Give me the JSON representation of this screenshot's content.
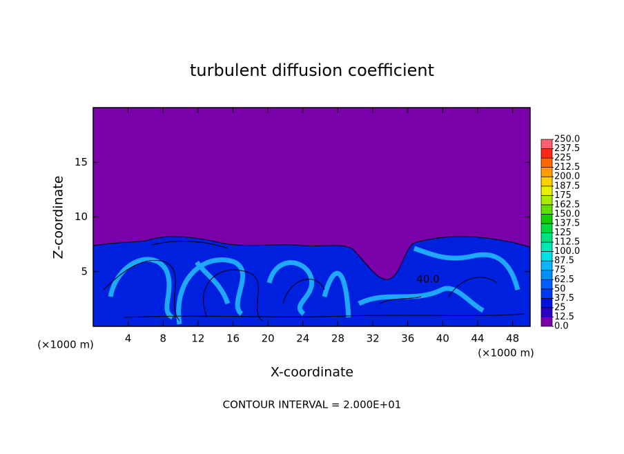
{
  "chart_data": {
    "type": "contour",
    "title": "turbulent diffusion coefficient",
    "x_label": "X-coordinate",
    "y_label": "Z-coordinate",
    "x_unit_label": "(×1000 m)",
    "x_unit_label_right": "(×1000 m)",
    "footer": "CONTOUR INTERVAL = 2.000E+01",
    "contour_labels": [
      "40.0"
    ],
    "xlim": [
      0,
      50
    ],
    "xticks": [
      4,
      8,
      12,
      16,
      20,
      24,
      28,
      32,
      36,
      40,
      44,
      48
    ],
    "ylim": [
      0,
      20
    ],
    "yticks": [
      5,
      10,
      15
    ],
    "colorbar_ticks": [
      {
        "value": 0,
        "label": "0.0"
      },
      12.5,
      25,
      37.5,
      50,
      62.5,
      75,
      87.5,
      {
        "value": 100,
        "label": "100.0"
      },
      112.5,
      125,
      137.5,
      {
        "value": 150,
        "label": "150.0"
      },
      162.5,
      175,
      187.5,
      {
        "value": 200,
        "label": "200.0"
      },
      212.5,
      225,
      237.5,
      {
        "value": 250,
        "label": "250.0"
      }
    ],
    "colorbar_colors": [
      "#7a00aa",
      "#2a00c8",
      "#0010e0",
      "#0038f0",
      "#0060ff",
      "#0090ff",
      "#00b8ff",
      "#00e0e8",
      "#00e8b8",
      "#00e080",
      "#00d840",
      "#10d000",
      "#60e000",
      "#a8ec00",
      "#e8f000",
      "#ffd000",
      "#ffa000",
      "#ff6800",
      "#ff2818",
      "#ff6070"
    ]
  }
}
